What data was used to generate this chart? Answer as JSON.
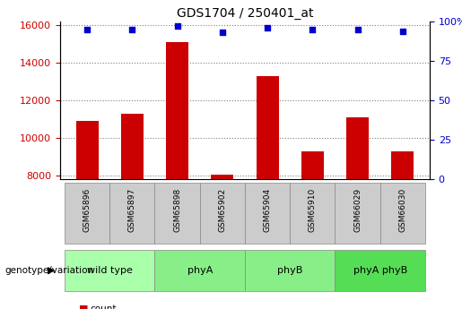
{
  "title": "GDS1704 / 250401_at",
  "samples": [
    "GSM65896",
    "GSM65897",
    "GSM65898",
    "GSM65902",
    "GSM65904",
    "GSM65910",
    "GSM66029",
    "GSM66030"
  ],
  "counts": [
    10900,
    11300,
    15100,
    8050,
    13300,
    9300,
    11100,
    9300
  ],
  "percentile_ranks": [
    95,
    95,
    97,
    93,
    96,
    95,
    95,
    94
  ],
  "groups": [
    {
      "label": "wild type",
      "indices": [
        0,
        1
      ],
      "color": "#aaffaa"
    },
    {
      "label": "phyA",
      "indices": [
        2,
        3
      ],
      "color": "#88ee88"
    },
    {
      "label": "phyB",
      "indices": [
        4,
        5
      ],
      "color": "#88ee88"
    },
    {
      "label": "phyA phyB",
      "indices": [
        6,
        7
      ],
      "color": "#55dd55"
    }
  ],
  "bar_color": "#cc0000",
  "dot_color": "#0000cc",
  "ylim_left": [
    7800,
    16200
  ],
  "ylim_right": [
    0,
    100
  ],
  "yticks_left": [
    8000,
    10000,
    12000,
    14000,
    16000
  ],
  "yticks_right": [
    0,
    25,
    50,
    75,
    100
  ],
  "ylabel_left_color": "#cc0000",
  "ylabel_right_color": "#0000cc",
  "legend_count_color": "#cc0000",
  "legend_pct_color": "#0000cc",
  "group_label_text": "genotype/variation",
  "sample_box_color": "#cccccc",
  "sample_box_edge": "#888888"
}
